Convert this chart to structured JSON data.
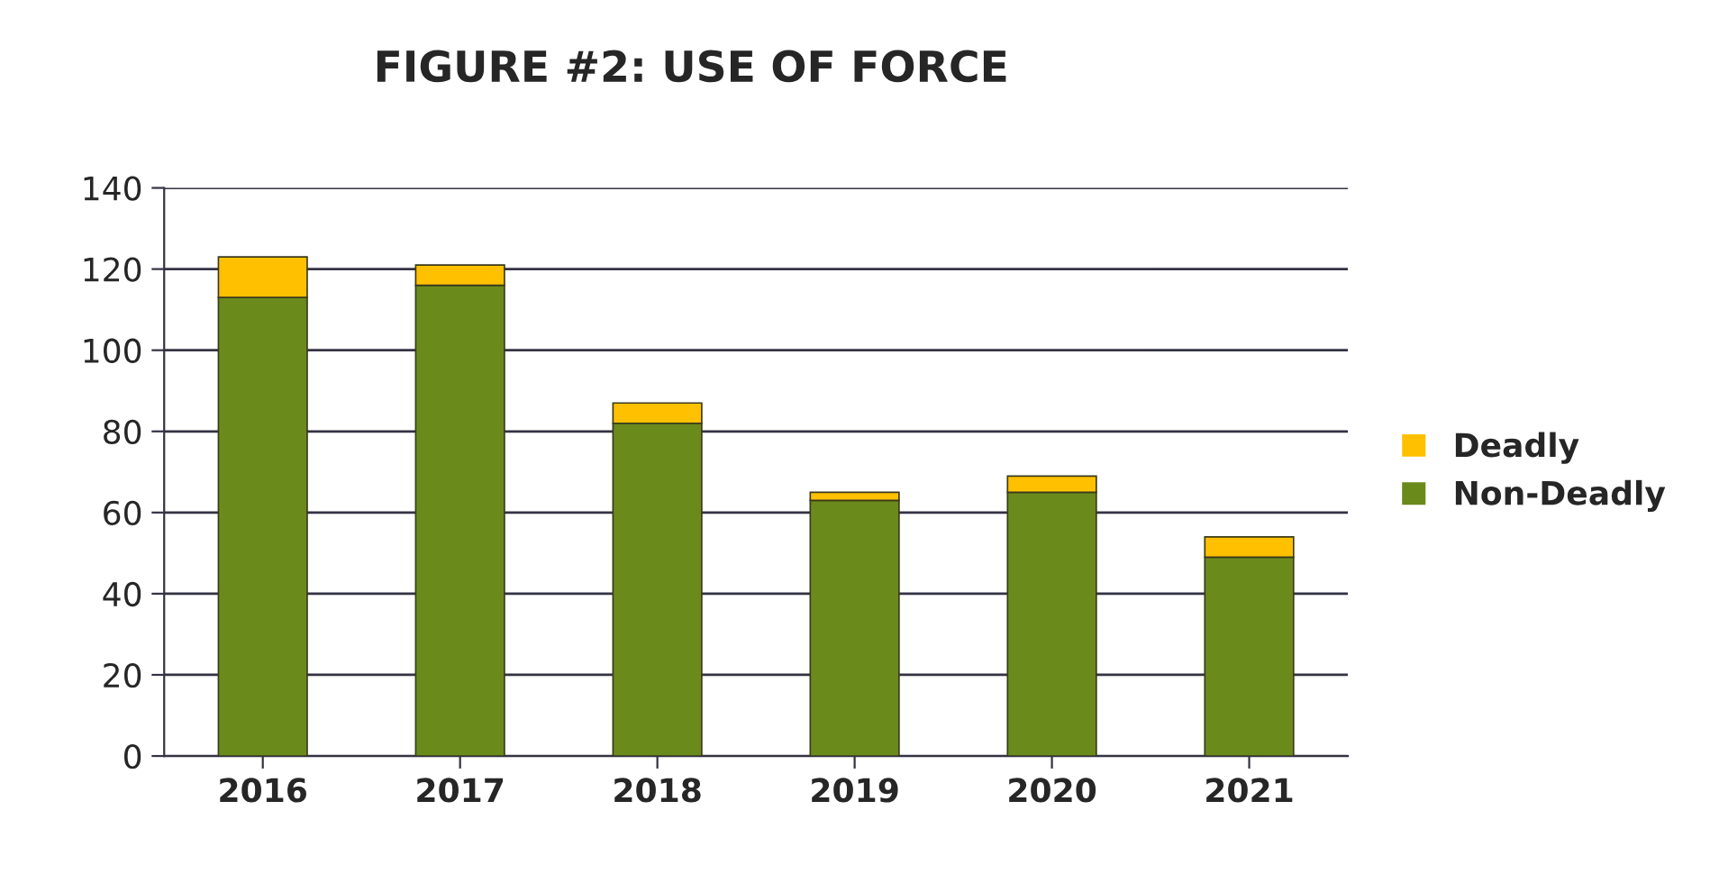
{
  "chart_data": {
    "type": "bar",
    "title": "FIGURE #2: USE OF FORCE",
    "stacked": true,
    "categories": [
      "2016",
      "2017",
      "2018",
      "2019",
      "2020",
      "2021"
    ],
    "series": [
      {
        "name": "Non-Deadly",
        "color": "#6b8a1c",
        "values": [
          113,
          116,
          82,
          63,
          65,
          49
        ]
      },
      {
        "name": "Deadly",
        "color": "#ffc000",
        "values": [
          10,
          5,
          5,
          2,
          4,
          5
        ]
      }
    ],
    "ylim": [
      0,
      140
    ],
    "yticks": [
      0,
      20,
      40,
      60,
      80,
      100,
      120,
      140
    ],
    "grid": "y",
    "legend": "right"
  }
}
